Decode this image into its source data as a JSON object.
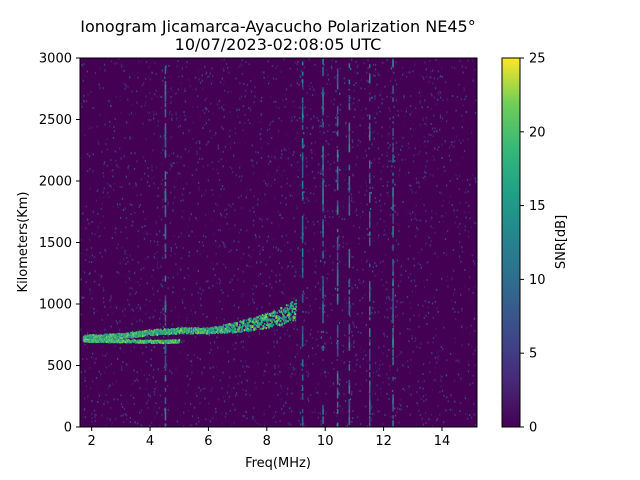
{
  "chart_data": {
    "type": "heatmap",
    "title_line1": "Ionogram Jicamarca-Ayacucho Polarization NE45°",
    "title_line2": "10/07/2023-02:08:05 UTC",
    "xlabel": "Freq(MHz)",
    "ylabel": "Kilometers(Km)",
    "xlim": [
      1.6,
      15.2
    ],
    "ylim": [
      0,
      3000
    ],
    "xticks": [
      2,
      4,
      6,
      8,
      10,
      12,
      14
    ],
    "yticks": [
      0,
      500,
      1000,
      1500,
      2000,
      2500,
      3000
    ],
    "colorbar": {
      "label": "SNR[dB]",
      "colormap": "viridis",
      "range": [
        0,
        25
      ],
      "ticks": [
        0,
        5,
        10,
        15,
        20,
        25
      ]
    },
    "features": {
      "trace_lower": {
        "x": [
          1.7,
          3.0,
          4.5,
          5.0
        ],
        "y": [
          710,
          705,
          700,
          705
        ],
        "snr": 24
      },
      "trace_main": {
        "x": [
          1.7,
          3.0,
          4.0,
          5.0,
          6.0,
          7.0,
          7.8,
          8.5,
          9.0
        ],
        "y": [
          730,
          745,
          775,
          790,
          790,
          820,
          860,
          910,
          960
        ],
        "snr": 23
      },
      "noise_vertical_lines_mhz": [
        4.5,
        9.2,
        9.9,
        10.4,
        10.8,
        11.5,
        12.3
      ]
    }
  }
}
